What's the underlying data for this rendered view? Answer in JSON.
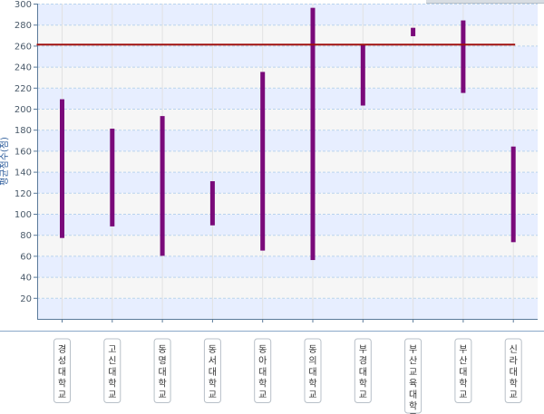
{
  "chart_data": {
    "type": "bar",
    "subtype": "floating-range",
    "categories": [
      "경성대학교",
      "고신대학교",
      "동명대학교",
      "동서대학교",
      "동아대학교",
      "동의대학교",
      "부경대학교",
      "부산교육대학교",
      "부산대학교",
      "신라대학교"
    ],
    "ranges": [
      [
        77,
        209
      ],
      [
        88,
        181
      ],
      [
        60,
        193
      ],
      [
        89,
        131
      ],
      [
        65,
        235
      ],
      [
        56,
        296
      ],
      [
        203,
        261
      ],
      [
        269,
        277
      ],
      [
        215,
        284
      ],
      [
        73,
        164
      ]
    ],
    "reference_line": 261,
    "ylabel": "평균점수(점)",
    "ylim": [
      0,
      300
    ],
    "yticks": [
      20,
      40,
      60,
      80,
      100,
      120,
      140,
      160,
      180,
      200,
      220,
      240,
      260,
      280,
      300
    ],
    "grid": true,
    "legend": "none"
  },
  "colors": {
    "bar": "#7a0a7a",
    "reference_line": "#a01010",
    "band_light": "#f6f6f6",
    "band_blue": "#e7eeff",
    "axis": "#5a7a9a"
  }
}
